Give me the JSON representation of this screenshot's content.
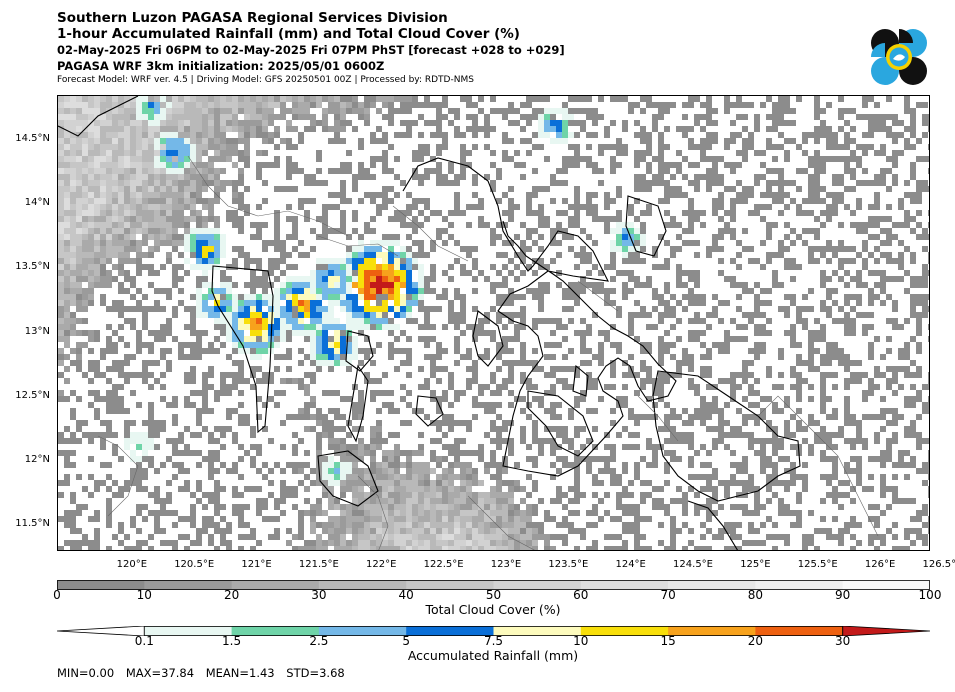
{
  "header": {
    "line1": "Southern Luzon PAGASA Regional Services Division",
    "line2": "1-hour Accumulated Rainfall (mm) and Total Cloud Cover (%)",
    "line3": "02-May-2025 Fri 06PM to 02-May-2025 Fri 07PM PhST [forecast +028 to +029]",
    "line4": "PAGASA WRF 3km initialization: 2025/05/01 0600Z",
    "line5": "Forecast Model: WRF ver. 4.5 | Driving Model: GFS 20250501 00Z | Processed by: RDTD-NMS"
  },
  "logo": {
    "name": "pagasa-logo",
    "colors": [
      "#111111",
      "#2aa7df",
      "#f5d100"
    ]
  },
  "map": {
    "lon_range": [
      119.4,
      126.4
    ],
    "lat_range": [
      11.3,
      14.85
    ],
    "lat_labels": [
      "14.5°N",
      "14°N",
      "13.5°N",
      "13°N",
      "12.5°N",
      "12°N",
      "11.5°N"
    ],
    "lat_values": [
      14.5,
      14.0,
      13.5,
      13.0,
      12.5,
      12.0,
      11.5
    ],
    "lon_labels": [
      "120°E",
      "120.5°E",
      "121°E",
      "121.5°E",
      "122°E",
      "122.5°E",
      "123°E",
      "123.5°E",
      "124°E",
      "124.5°E",
      "125°E",
      "125.5°E",
      "126°E",
      "126.5°E"
    ],
    "lon_values": [
      120.0,
      120.5,
      121.0,
      121.5,
      122.0,
      122.5,
      123.0,
      123.5,
      124.0,
      124.5,
      125.0,
      125.5,
      126.0,
      126.5
    ],
    "rain_hotspots": [
      {
        "lon": 121.95,
        "lat": 13.42,
        "value": 37.84
      },
      {
        "lon": 120.95,
        "lat": 13.07,
        "value": 22
      },
      {
        "lon": 121.35,
        "lat": 13.25,
        "value": 20
      },
      {
        "lon": 121.55,
        "lat": 13.45,
        "value": 12
      },
      {
        "lon": 120.55,
        "lat": 13.68,
        "value": 12
      },
      {
        "lon": 120.65,
        "lat": 13.28,
        "value": 10
      },
      {
        "lon": 121.6,
        "lat": 12.95,
        "value": 15
      },
      {
        "lon": 120.3,
        "lat": 14.45,
        "value": 10
      },
      {
        "lon": 120.15,
        "lat": 14.78,
        "value": 6
      },
      {
        "lon": 123.95,
        "lat": 13.75,
        "value": 6
      },
      {
        "lon": 123.35,
        "lat": 14.62,
        "value": 8
      },
      {
        "lon": 121.6,
        "lat": 11.95,
        "value": 4
      },
      {
        "lon": 120.0,
        "lat": 12.15,
        "value": 3
      }
    ]
  },
  "cloud_colorbar": {
    "title": "Total Cloud Cover (%)",
    "ticks": [
      "0",
      "10",
      "20",
      "30",
      "40",
      "50",
      "60",
      "70",
      "80",
      "90",
      "100"
    ],
    "colors": [
      "#8c8c8c",
      "#9b9b9b",
      "#aaaaaa",
      "#b9b9b9",
      "#c6c6c6",
      "#d2d2d2",
      "#dddddd",
      "#e6e6e6",
      "#efefef",
      "#f8f8f8"
    ]
  },
  "rain_colorbar": {
    "title": "Accumulated Rainfall (mm)",
    "ticks": [
      "0.1",
      "1.5",
      "2.5",
      "5",
      "7.5",
      "10",
      "15",
      "20",
      "30"
    ],
    "colors": [
      "#e8f7f2",
      "#6fd4a8",
      "#74b8e8",
      "#0a6fd8",
      "#fdfbbd",
      "#f8df0a",
      "#f7a21c",
      "#ee6010",
      "#c31a1a"
    ],
    "under_color": "#ffffff",
    "over_color": "#a71010"
  },
  "stats": {
    "min": "MIN=0.00",
    "max": "MAX=37.84",
    "mean": "MEAN=1.43",
    "std": "STD=3.68"
  }
}
